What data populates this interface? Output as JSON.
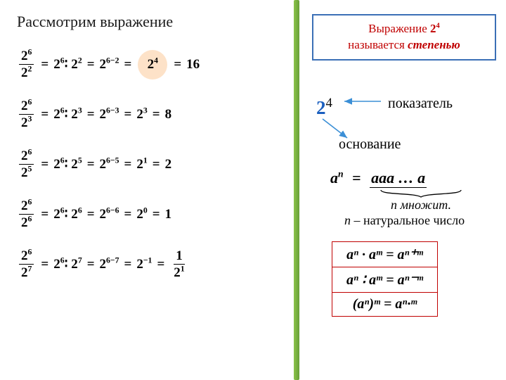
{
  "left": {
    "title": "Рассмотрим выражение",
    "rows": [
      {
        "num": "2",
        "num_exp": "6",
        "den": "2",
        "den_exp": "2",
        "div": "2",
        "div_a": "6",
        "div_b": "2",
        "sub": "2",
        "sub_exp": "6−2",
        "res_base": "2",
        "res_exp": "4",
        "val": "16",
        "highlight": true
      },
      {
        "num": "2",
        "num_exp": "6",
        "den": "2",
        "den_exp": "3",
        "div": "2",
        "div_a": "6",
        "div_b": "3",
        "sub": "2",
        "sub_exp": "6−3",
        "res_base": "2",
        "res_exp": "3",
        "val": "8",
        "highlight": false
      },
      {
        "num": "2",
        "num_exp": "6",
        "den": "2",
        "den_exp": "5",
        "div": "2",
        "div_a": "6",
        "div_b": "5",
        "sub": "2",
        "sub_exp": "6−5",
        "res_base": "2",
        "res_exp": "1",
        "val": "2",
        "highlight": false
      },
      {
        "num": "2",
        "num_exp": "6",
        "den": "2",
        "den_exp": "6",
        "div": "2",
        "div_a": "6",
        "div_b": "6",
        "sub": "2",
        "sub_exp": "6−6",
        "res_base": "2",
        "res_exp": "0",
        "val": "1",
        "highlight": false
      },
      {
        "num": "2",
        "num_exp": "6",
        "den": "2",
        "den_exp": "7",
        "div": "2",
        "div_a": "6",
        "div_b": "7",
        "sub": "2",
        "sub_exp": "6−7",
        "res_base": "2",
        "res_exp": "−1",
        "val_frac": {
          "num": "1",
          "den_base": "2",
          "den_exp": "1"
        },
        "highlight": false
      }
    ]
  },
  "right": {
    "box_line1_pre": "Выражение ",
    "box_expr_base": "2",
    "box_expr_exp": "4",
    "box_line2_pre": "называется ",
    "box_line2_term": "степенью",
    "term_base": "2",
    "term_exp": "4",
    "label_exponent": "показатель",
    "label_base": "основание",
    "def_lhs_base": "a",
    "def_lhs_exp": "n",
    "def_rhs": "aaa … a",
    "brace_n": "n",
    "brace_text": " множит.",
    "nat_n": "n",
    "nat_text": " – натуральное число",
    "rules": [
      "aⁿ · aᵐ = aⁿ⁺ᵐ",
      "aⁿ ∶ aᵐ = aⁿ⁻ᵐ",
      "(aⁿ)ᵐ = aⁿ·ᵐ"
    ],
    "colors": {
      "divider": "#8bc34a",
      "box_border": "#3b6fb6",
      "red": "#c00000",
      "blue": "#1b5fbf",
      "arrow": "#3b8fd6",
      "circle_bg": "#fde2c8"
    }
  }
}
